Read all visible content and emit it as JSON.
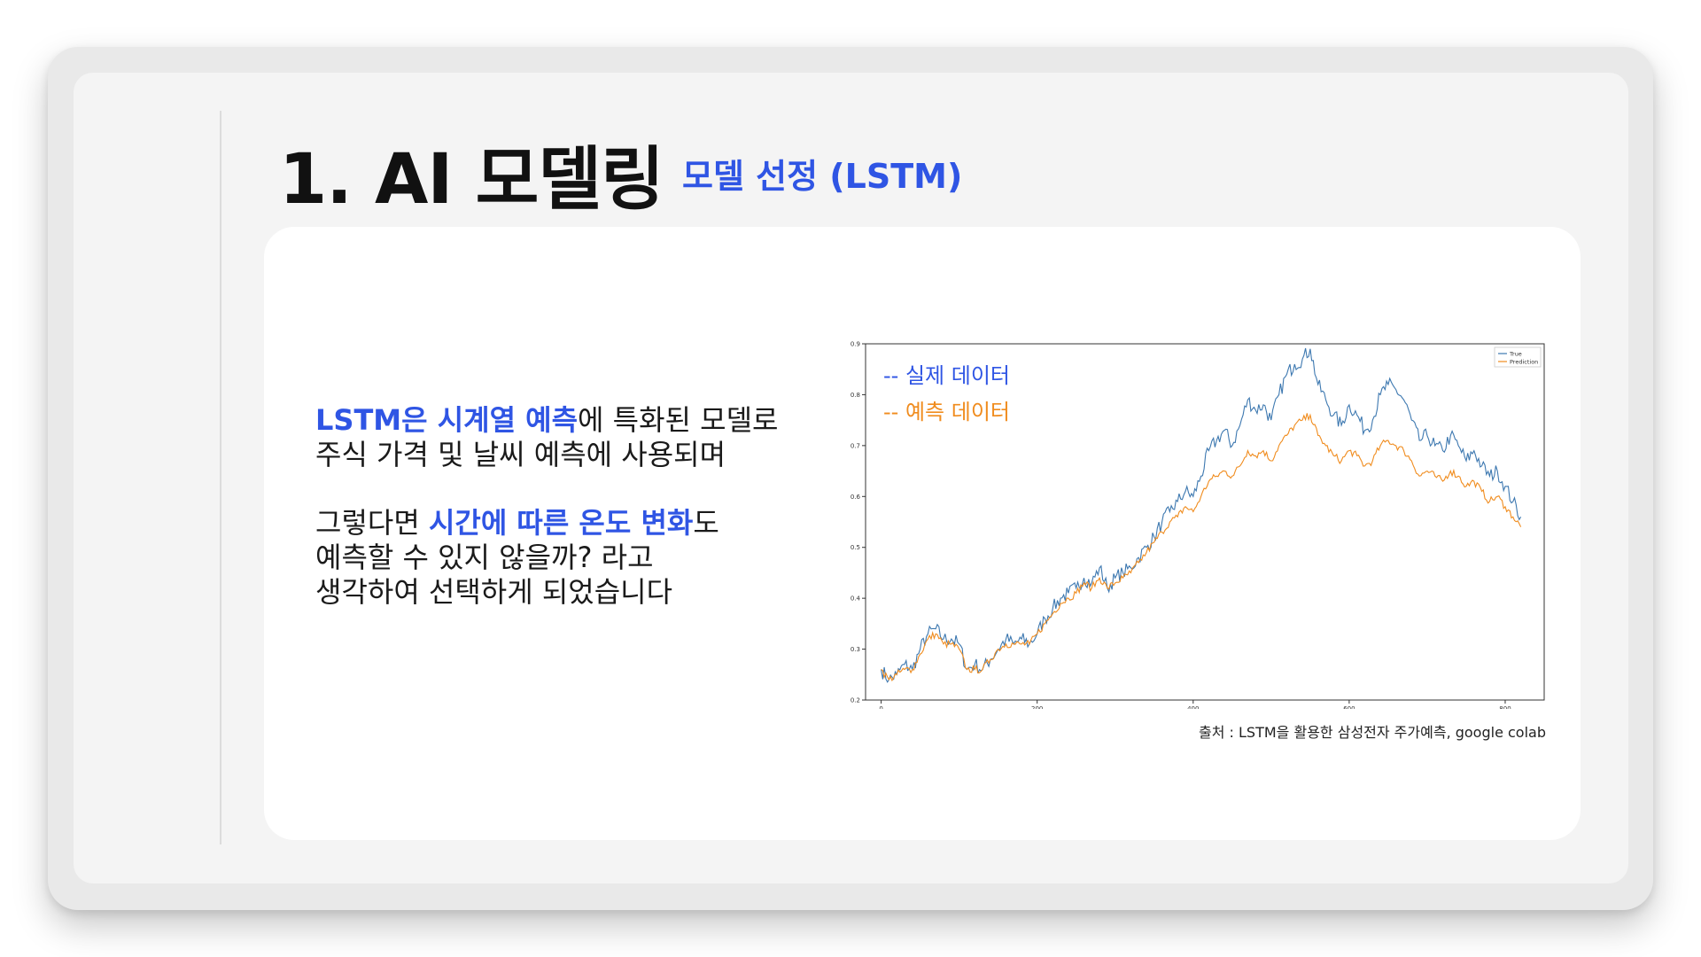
{
  "slide": {
    "title": "1. AI 모델링",
    "subtitle": "모델 선정 (LSTM)",
    "body": {
      "line1_hl": "LSTM은 시계열 예측",
      "line1_rest": "에 특화된 모델로",
      "line2": "주식 가격 및 날씨 예측에 사용되며",
      "line3_pre": "그렇다면 ",
      "line3_hl": "시간에 따른 온도 변화",
      "line3_post": "도",
      "line4": "예측할 수 있지 않을까? 라고",
      "line5": "생각하여 선택하게 되었습니다"
    },
    "overlay_legend": {
      "true_label": "-- 실제 데이터",
      "pred_label": "-- 예측 데이터"
    },
    "caption": "출처 : LSTM을 활용한 삼성전자 주가예측, google colab"
  },
  "colors": {
    "accent_blue": "#2f55e4",
    "true_line": "#3d78b0",
    "pred_line": "#f08c1e"
  },
  "chart_data": {
    "type": "line",
    "xlim": [
      -20,
      850
    ],
    "ylim": [
      0.2,
      0.9
    ],
    "xticks": [
      0,
      200,
      400,
      600,
      800
    ],
    "yticks": [
      0.2,
      0.3,
      0.4,
      0.5,
      0.6,
      0.7,
      0.8,
      0.9
    ],
    "grid": false,
    "legend_position": "top-right",
    "series": [
      {
        "name": "True",
        "color": "#3d78b0",
        "x": [
          0,
          10,
          20,
          30,
          40,
          50,
          60,
          70,
          80,
          90,
          100,
          110,
          120,
          130,
          140,
          150,
          160,
          170,
          180,
          190,
          200,
          210,
          220,
          230,
          240,
          250,
          260,
          270,
          280,
          290,
          300,
          310,
          320,
          330,
          340,
          350,
          360,
          370,
          380,
          390,
          400,
          410,
          420,
          430,
          440,
          450,
          460,
          470,
          480,
          490,
          500,
          510,
          520,
          530,
          540,
          550,
          560,
          570,
          580,
          590,
          600,
          610,
          620,
          630,
          640,
          650,
          660,
          670,
          680,
          690,
          700,
          710,
          720,
          730,
          740,
          750,
          760,
          770,
          780,
          790,
          800,
          810,
          820
        ],
        "y": [
          0.26,
          0.24,
          0.25,
          0.27,
          0.26,
          0.3,
          0.33,
          0.34,
          0.32,
          0.32,
          0.31,
          0.26,
          0.27,
          0.26,
          0.28,
          0.3,
          0.32,
          0.31,
          0.32,
          0.31,
          0.33,
          0.36,
          0.38,
          0.4,
          0.41,
          0.42,
          0.44,
          0.43,
          0.46,
          0.42,
          0.44,
          0.45,
          0.46,
          0.48,
          0.5,
          0.52,
          0.55,
          0.57,
          0.59,
          0.61,
          0.6,
          0.64,
          0.69,
          0.71,
          0.73,
          0.7,
          0.74,
          0.79,
          0.77,
          0.78,
          0.75,
          0.8,
          0.84,
          0.86,
          0.87,
          0.89,
          0.82,
          0.79,
          0.76,
          0.74,
          0.78,
          0.76,
          0.73,
          0.75,
          0.8,
          0.82,
          0.81,
          0.79,
          0.75,
          0.71,
          0.72,
          0.7,
          0.69,
          0.72,
          0.7,
          0.67,
          0.69,
          0.66,
          0.64,
          0.65,
          0.62,
          0.59,
          0.56
        ]
      },
      {
        "name": "Prediction",
        "color": "#f08c1e",
        "x": [
          0,
          10,
          20,
          30,
          40,
          50,
          60,
          70,
          80,
          90,
          100,
          110,
          120,
          130,
          140,
          150,
          160,
          170,
          180,
          190,
          200,
          210,
          220,
          230,
          240,
          250,
          260,
          270,
          280,
          290,
          300,
          310,
          320,
          330,
          340,
          350,
          360,
          370,
          380,
          390,
          400,
          410,
          420,
          430,
          440,
          450,
          460,
          470,
          480,
          490,
          500,
          510,
          520,
          530,
          540,
          550,
          560,
          570,
          580,
          590,
          600,
          610,
          620,
          630,
          640,
          650,
          660,
          670,
          680,
          690,
          700,
          710,
          720,
          730,
          740,
          750,
          760,
          770,
          780,
          790,
          800,
          810,
          820
        ],
        "y": [
          0.26,
          0.24,
          0.25,
          0.26,
          0.26,
          0.29,
          0.32,
          0.33,
          0.31,
          0.31,
          0.3,
          0.26,
          0.26,
          0.26,
          0.28,
          0.3,
          0.31,
          0.31,
          0.31,
          0.31,
          0.33,
          0.35,
          0.37,
          0.39,
          0.4,
          0.41,
          0.43,
          0.42,
          0.44,
          0.42,
          0.43,
          0.44,
          0.45,
          0.47,
          0.49,
          0.51,
          0.53,
          0.55,
          0.56,
          0.58,
          0.57,
          0.6,
          0.63,
          0.64,
          0.65,
          0.64,
          0.66,
          0.69,
          0.68,
          0.69,
          0.67,
          0.7,
          0.72,
          0.74,
          0.75,
          0.76,
          0.72,
          0.7,
          0.68,
          0.67,
          0.69,
          0.68,
          0.66,
          0.67,
          0.7,
          0.71,
          0.7,
          0.69,
          0.67,
          0.64,
          0.65,
          0.64,
          0.63,
          0.65,
          0.64,
          0.62,
          0.63,
          0.61,
          0.59,
          0.6,
          0.58,
          0.56,
          0.54
        ]
      }
    ]
  }
}
